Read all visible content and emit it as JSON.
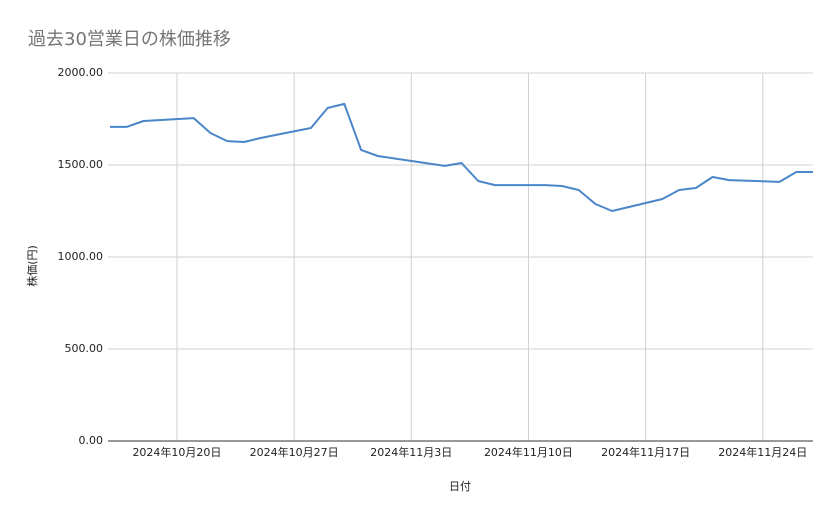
{
  "chart_data": {
    "type": "line",
    "title": "過去30営業日の株価推移",
    "x_label": "日付",
    "y_label": "株価(円)",
    "x": [
      "2024-10-16",
      "2024-10-17",
      "2024-10-18",
      "2024-10-21",
      "2024-10-22",
      "2024-10-23",
      "2024-10-24",
      "2024-10-25",
      "2024-10-28",
      "2024-10-29",
      "2024-10-30",
      "2024-10-31",
      "2024-11-01",
      "2024-11-05",
      "2024-11-06",
      "2024-11-07",
      "2024-11-08",
      "2024-11-11",
      "2024-11-12",
      "2024-11-13",
      "2024-11-14",
      "2024-11-15",
      "2024-11-18",
      "2024-11-19",
      "2024-11-20",
      "2024-11-21",
      "2024-11-22",
      "2024-11-25",
      "2024-11-26",
      "2024-11-27"
    ],
    "values": [
      1707,
      1707,
      1739,
      1755,
      1674,
      1630,
      1625,
      1647,
      1701,
      1810,
      1832,
      1582,
      1549,
      1495,
      1511,
      1413,
      1391,
      1391,
      1386,
      1364,
      1288,
      1250,
      1315,
      1364,
      1375,
      1435,
      1418,
      1408,
      1462,
      1462
    ],
    "color": "#4a86c8",
    "xlim": [
      "2024-10-16",
      "2024-11-27"
    ],
    "xticks": [
      {
        "value": "2024-10-20",
        "label": "2024年10月20日"
      },
      {
        "value": "2024-10-27",
        "label": "2024年10月27日"
      },
      {
        "value": "2024-11-03",
        "label": "2024年11月3日"
      },
      {
        "value": "2024-11-10",
        "label": "2024年11月10日"
      },
      {
        "value": "2024-11-17",
        "label": "2024年11月17日"
      },
      {
        "value": "2024-11-24",
        "label": "2024年11月24日"
      }
    ],
    "ylim": [
      0,
      2000
    ],
    "yticks": [
      {
        "value": 0,
        "label": "0.00"
      },
      {
        "value": 500,
        "label": "500.00"
      },
      {
        "value": 1000,
        "label": "1000.00"
      },
      {
        "value": 1500,
        "label": "1500.00"
      },
      {
        "value": 2000,
        "label": "2000.00"
      }
    ],
    "grid": true
  }
}
